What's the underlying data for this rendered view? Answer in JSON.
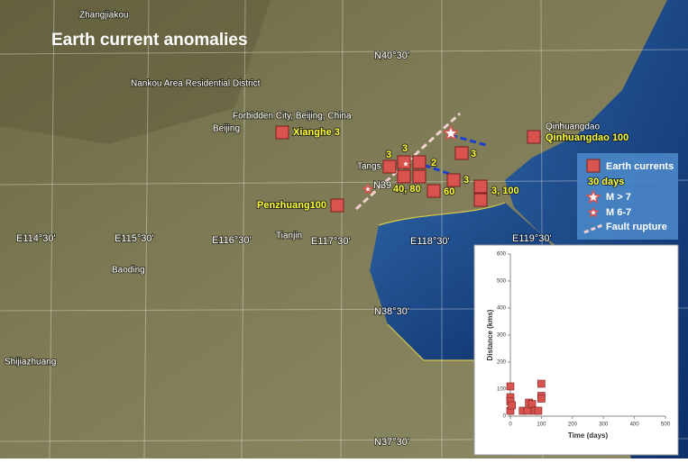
{
  "title": "Earth current anomalies",
  "places": [
    "Zhangjiakou",
    "Nankou Area Residential District",
    "Forbidden City, Beijing, China",
    "Beijing",
    "Tianjin",
    "Baoding",
    "Shijiazhuang",
    "Qinhuangdao",
    "Tangs"
  ],
  "graticule": [
    "N40°30'",
    "N39",
    "N38°30'",
    "N37°30'",
    "E114°30'",
    "E115°30'",
    "E116°30'",
    "E117°30'",
    "E118°30'",
    "E119°30'"
  ],
  "annotations": [
    "Xianghe 3",
    "Qinhuangdao 100",
    "Penzhuang100",
    "3",
    "3",
    "2",
    "3",
    "3",
    "40, 80",
    "60",
    "3, 100"
  ],
  "legend": {
    "earth_currents": "Earth currents",
    "days": "30  days",
    "m7": "M > 7",
    "m67": "M 6-7",
    "fault": "Fault rupture"
  },
  "chart_data": {
    "type": "scatter",
    "x_label": "Time (days)",
    "y_label": "Distance (kms)",
    "xlim": [
      0,
      500
    ],
    "xticks": [
      0,
      100,
      200,
      300,
      400,
      500
    ],
    "ylim": [
      0,
      600
    ],
    "yticks": [
      0,
      100,
      200,
      300,
      400,
      500,
      600
    ],
    "color": "#d9534f",
    "x": [
      0,
      0,
      0,
      0,
      5,
      40,
      55,
      60,
      70,
      80,
      90,
      100,
      100,
      100
    ],
    "y": [
      110,
      70,
      55,
      20,
      40,
      20,
      20,
      50,
      45,
      20,
      20,
      120,
      75,
      65
    ]
  }
}
